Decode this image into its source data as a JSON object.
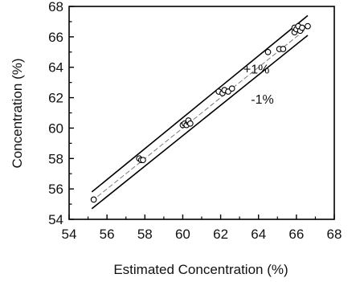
{
  "chart_data": {
    "type": "scatter",
    "xlabel": "Estimated Concentration (%)",
    "ylabel": "Concentration (%)",
    "xlim": [
      54,
      68
    ],
    "ylim": [
      54,
      68
    ],
    "xticks": [
      54,
      56,
      58,
      60,
      62,
      64,
      66,
      68
    ],
    "yticks": [
      54,
      56,
      58,
      60,
      62,
      64,
      66,
      68
    ],
    "grid": false,
    "legend": "none",
    "annotations": [
      {
        "text": "+1%",
        "x": 63.2,
        "y": 63.6
      },
      {
        "text": "-1%",
        "x": 63.6,
        "y": 61.6
      }
    ],
    "lines": [
      {
        "label": "+1%",
        "x": [
          55.2,
          66.6
        ],
        "y": [
          55.8,
          67.4
        ]
      },
      {
        "label": "-1%",
        "x": [
          55.2,
          66.6
        ],
        "y": [
          54.7,
          66.1
        ]
      },
      {
        "label": "",
        "style": "dashed",
        "x": [
          55.2,
          66.6
        ],
        "y": [
          55.2,
          66.6
        ]
      }
    ],
    "points": [
      {
        "x": 55.3,
        "y": 55.3
      },
      {
        "x": 57.7,
        "y": 58.0
      },
      {
        "x": 57.8,
        "y": 57.9
      },
      {
        "x": 57.9,
        "y": 57.9
      },
      {
        "x": 60.0,
        "y": 60.2
      },
      {
        "x": 60.1,
        "y": 60.3
      },
      {
        "x": 60.2,
        "y": 60.2
      },
      {
        "x": 60.3,
        "y": 60.4
      },
      {
        "x": 60.3,
        "y": 60.5
      },
      {
        "x": 60.4,
        "y": 60.3
      },
      {
        "x": 61.9,
        "y": 62.4
      },
      {
        "x": 62.1,
        "y": 62.3
      },
      {
        "x": 62.2,
        "y": 62.5
      },
      {
        "x": 62.4,
        "y": 62.4
      },
      {
        "x": 62.6,
        "y": 62.6
      },
      {
        "x": 64.5,
        "y": 65.0
      },
      {
        "x": 65.1,
        "y": 65.2
      },
      {
        "x": 65.3,
        "y": 65.2
      },
      {
        "x": 65.9,
        "y": 66.3
      },
      {
        "x": 65.9,
        "y": 66.6
      },
      {
        "x": 66.0,
        "y": 66.5
      },
      {
        "x": 66.1,
        "y": 66.7
      },
      {
        "x": 66.2,
        "y": 66.4
      },
      {
        "x": 66.3,
        "y": 66.6
      },
      {
        "x": 66.6,
        "y": 66.7
      }
    ]
  }
}
